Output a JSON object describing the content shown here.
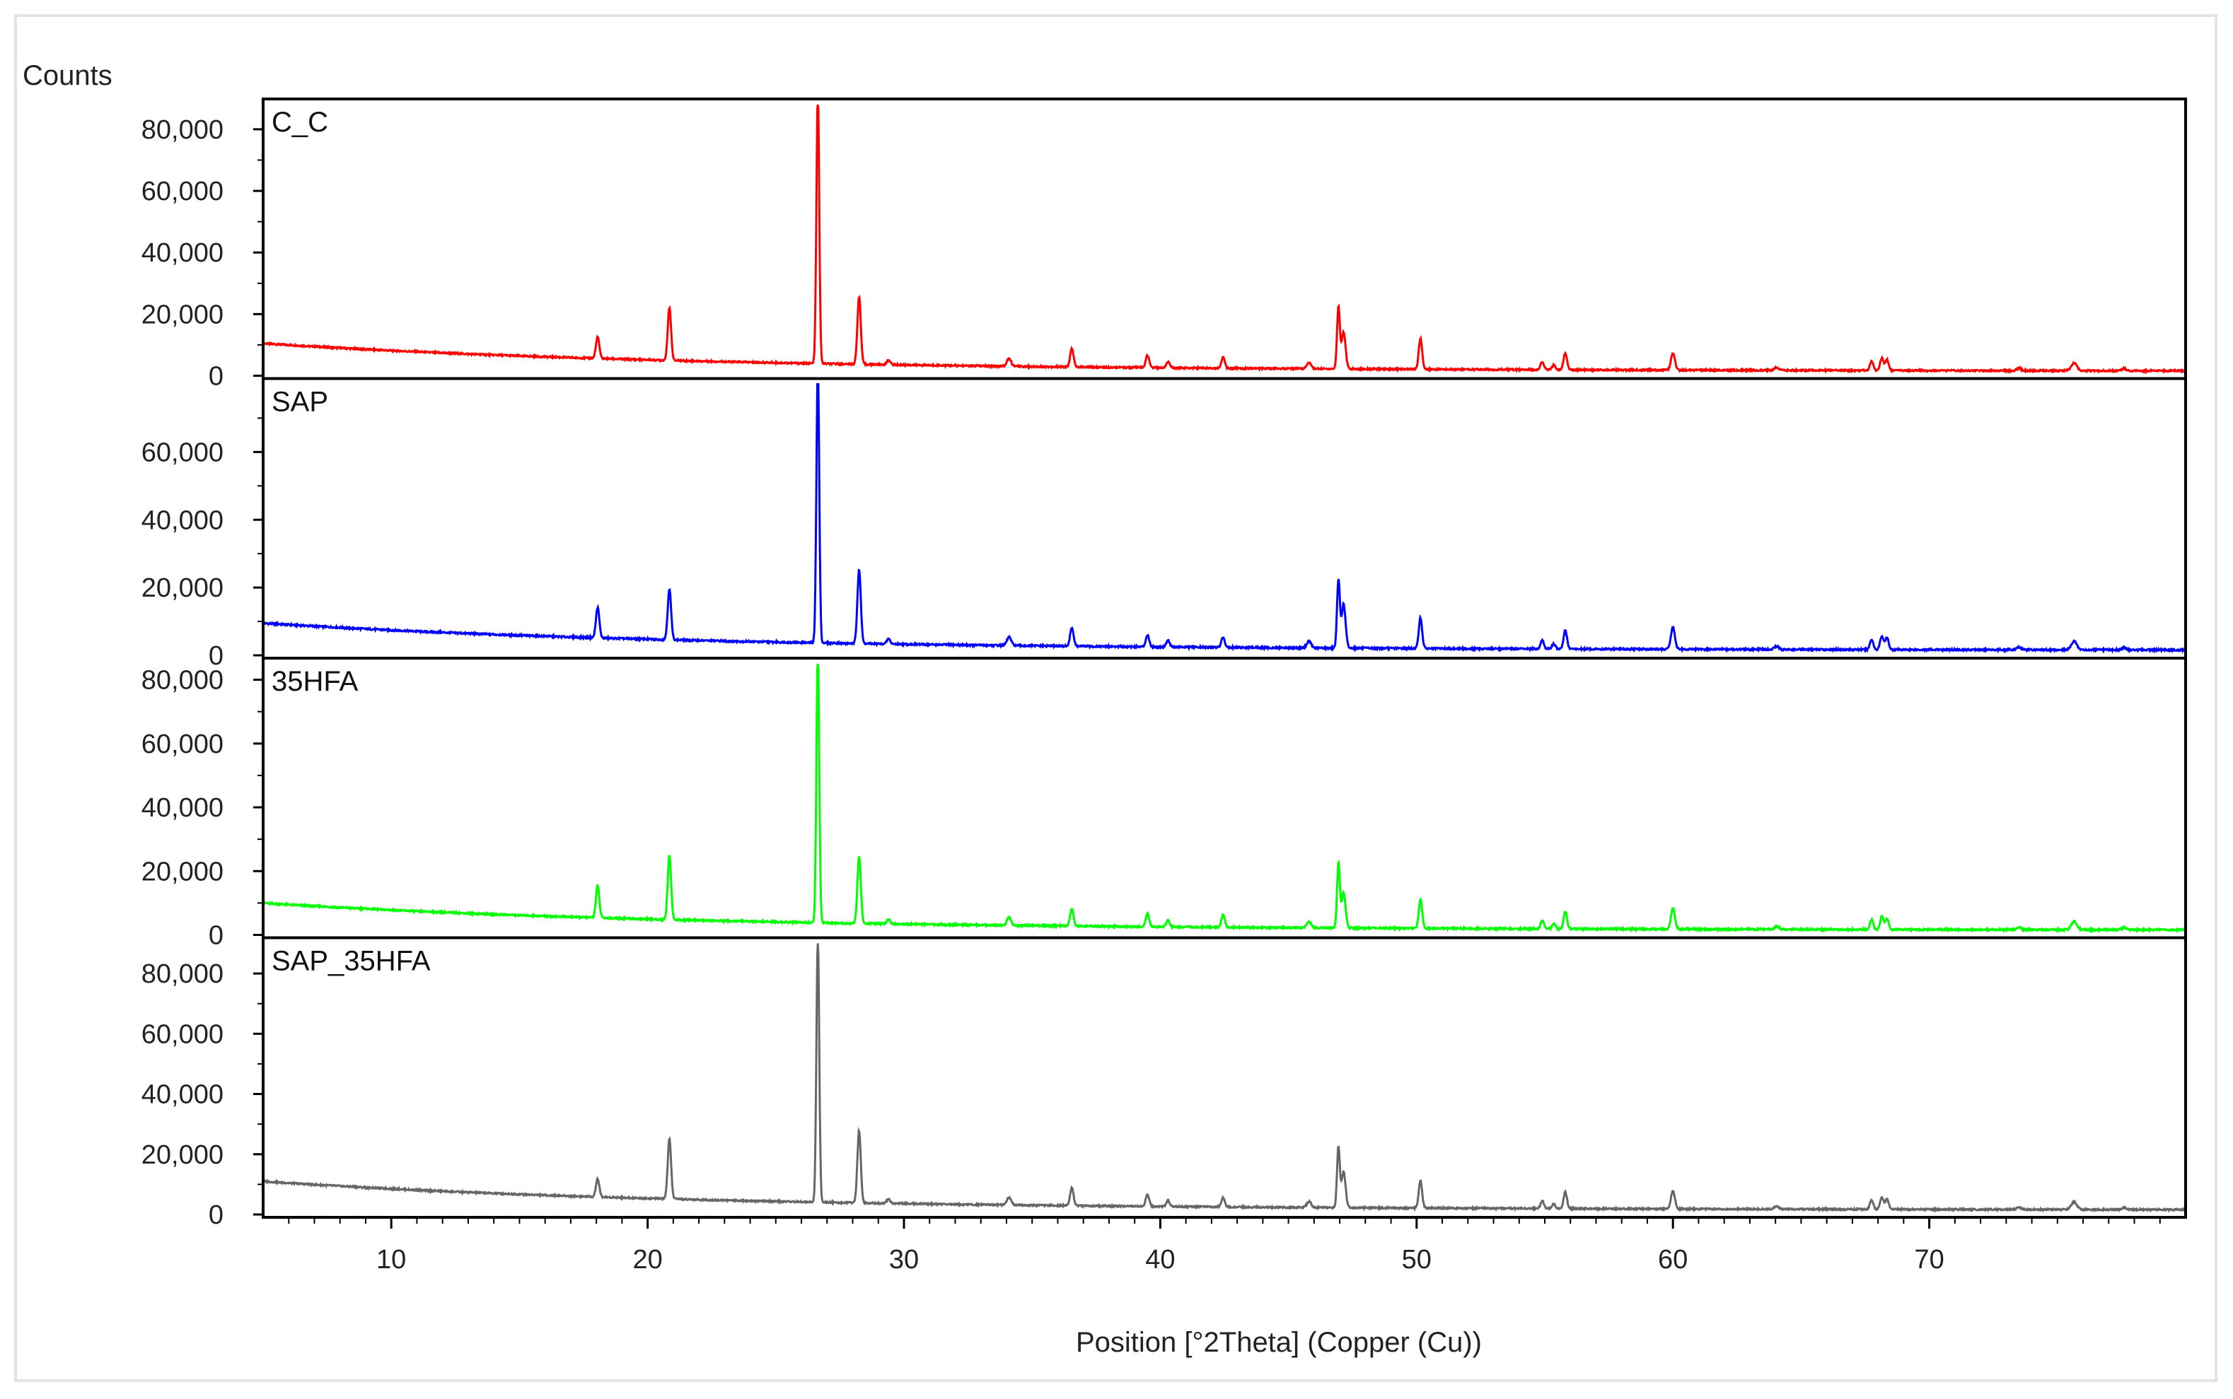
{
  "chart_data": {
    "type": "line",
    "ylabel": "Counts",
    "xlabel": "Position [°2Theta] (Copper (Cu))",
    "xlim": [
      5,
      80
    ],
    "x_ticks": [
      10,
      20,
      30,
      40,
      50,
      60,
      70
    ],
    "layout": "four vertically stacked panels sharing the x axis",
    "grid": false,
    "legend": "none (panel name in top-left of each panel)",
    "peaks": [
      {
        "x": 18.05,
        "w": 0.12
      },
      {
        "x": 20.85,
        "w": 0.12
      },
      {
        "x": 26.64,
        "w": 0.1
      },
      {
        "x": 28.25,
        "w": 0.12
      },
      {
        "x": 29.4,
        "w": 0.12
      },
      {
        "x": 34.1,
        "w": 0.15
      },
      {
        "x": 36.55,
        "w": 0.12
      },
      {
        "x": 39.5,
        "w": 0.12
      },
      {
        "x": 40.3,
        "w": 0.12
      },
      {
        "x": 42.45,
        "w": 0.12
      },
      {
        "x": 45.8,
        "w": 0.15
      },
      {
        "x": 46.95,
        "w": 0.1
      },
      {
        "x": 47.15,
        "w": 0.14
      },
      {
        "x": 50.15,
        "w": 0.12
      },
      {
        "x": 54.9,
        "w": 0.12
      },
      {
        "x": 55.35,
        "w": 0.12
      },
      {
        "x": 55.8,
        "w": 0.12
      },
      {
        "x": 60.0,
        "w": 0.14
      },
      {
        "x": 64.05,
        "w": 0.15
      },
      {
        "x": 67.75,
        "w": 0.12
      },
      {
        "x": 68.15,
        "w": 0.12
      },
      {
        "x": 68.35,
        "w": 0.12
      },
      {
        "x": 73.5,
        "w": 0.15
      },
      {
        "x": 75.65,
        "w": 0.2
      },
      {
        "x": 77.6,
        "w": 0.15
      }
    ],
    "series": [
      {
        "name": "C_C",
        "color": "#ff0000",
        "ylim": [
          0,
          88000
        ],
        "y_ticks": [
          0,
          20000,
          40000,
          60000,
          80000
        ],
        "y_tick_labels": [
          "0",
          "20,000",
          "40,000",
          "60,000",
          "80,000"
        ],
        "background": {
          "start": 10500,
          "decay": 0.06,
          "floor": 1500
        },
        "peak_heights": [
          7000,
          17000,
          88000,
          22000,
          1500,
          2500,
          6000,
          4000,
          2000,
          3500,
          2000,
          20000,
          12000,
          10000,
          2500,
          1500,
          5500,
          5500,
          1000,
          3000,
          4000,
          3500,
          800,
          2500,
          700
        ]
      },
      {
        "name": "SAP",
        "color": "#0000ff",
        "ylim": [
          0,
          80000
        ],
        "y_ticks": [
          0,
          20000,
          40000,
          60000
        ],
        "y_tick_labels": [
          "0",
          "20,000",
          "40,000",
          "60,000"
        ],
        "background": {
          "start": 9500,
          "decay": 0.06,
          "floor": 1500
        },
        "peak_heights": [
          9000,
          15000,
          82000,
          22000,
          1500,
          2500,
          5500,
          3500,
          2000,
          3000,
          2000,
          20000,
          13000,
          9000,
          2500,
          1500,
          5500,
          6500,
          1000,
          3000,
          4000,
          3500,
          800,
          2500,
          700
        ]
      },
      {
        "name": "35HFA",
        "color": "#00ff00",
        "ylim": [
          0,
          85000
        ],
        "y_ticks": [
          0,
          20000,
          40000,
          60000,
          80000
        ],
        "y_tick_labels": [
          "0",
          "20,000",
          "40,000",
          "60,000",
          "80,000"
        ],
        "background": {
          "start": 10000,
          "decay": 0.06,
          "floor": 1500
        },
        "peak_heights": [
          10000,
          20000,
          85000,
          21000,
          1500,
          2500,
          5500,
          4000,
          2000,
          4000,
          2000,
          20000,
          11000,
          9000,
          2500,
          1500,
          5500,
          6500,
          1000,
          3000,
          4000,
          3500,
          800,
          2500,
          700
        ]
      },
      {
        "name": "SAP_35HFA",
        "color": "#666666",
        "ylim": [
          0,
          90000
        ],
        "y_ticks": [
          0,
          20000,
          40000,
          60000,
          80000
        ],
        "y_tick_labels": [
          "0",
          "20,000",
          "40,000",
          "60,000",
          "80,000"
        ],
        "background": {
          "start": 11000,
          "decay": 0.06,
          "floor": 1500
        },
        "peak_heights": [
          6000,
          20000,
          88000,
          24000,
          1500,
          2500,
          6000,
          4000,
          2000,
          3000,
          2000,
          20000,
          12000,
          9000,
          2500,
          1500,
          5500,
          6000,
          1000,
          3000,
          4000,
          3500,
          800,
          2500,
          700
        ]
      }
    ]
  }
}
